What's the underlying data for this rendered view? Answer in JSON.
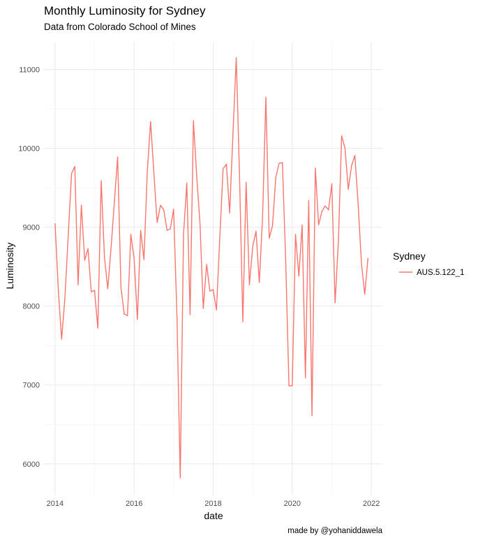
{
  "chart_data": {
    "type": "line",
    "title": "Monthly Luminosity for Sydney",
    "subtitle": "Data from Colorado School of Mines",
    "xlabel": "date",
    "ylabel": "Luminosity",
    "caption": "made by @yohaniddawela",
    "x_ticks": [
      "2014",
      "2016",
      "2018",
      "2020",
      "2022"
    ],
    "y_ticks": [
      "6000",
      "7000",
      "8000",
      "9000",
      "10000",
      "11000"
    ],
    "xlim": [
      2013.72,
      2022.28
    ],
    "ylim": [
      5600,
      11350
    ],
    "grid": true,
    "legend": {
      "title": "Sydney",
      "position": "right"
    },
    "series": [
      {
        "name": "AUS.5.122_1",
        "color": "#F8766D",
        "x": [
          "2014-01",
          "2014-02",
          "2014-03",
          "2014-04",
          "2014-05",
          "2014-06",
          "2014-07",
          "2014-08",
          "2014-09",
          "2014-10",
          "2014-11",
          "2014-12",
          "2015-01",
          "2015-02",
          "2015-03",
          "2015-04",
          "2015-05",
          "2015-06",
          "2015-07",
          "2015-08",
          "2015-09",
          "2015-10",
          "2015-11",
          "2015-12",
          "2016-01",
          "2016-02",
          "2016-03",
          "2016-04",
          "2016-05",
          "2016-06",
          "2016-07",
          "2016-08",
          "2016-09",
          "2016-10",
          "2016-11",
          "2016-12",
          "2017-01",
          "2017-02",
          "2017-03",
          "2017-04",
          "2017-05",
          "2017-06",
          "2017-07",
          "2017-08",
          "2017-09",
          "2017-10",
          "2017-11",
          "2017-12",
          "2018-01",
          "2018-02",
          "2018-03",
          "2018-04",
          "2018-05",
          "2018-06",
          "2018-07",
          "2018-08",
          "2018-09",
          "2018-10",
          "2018-11",
          "2018-12",
          "2019-01",
          "2019-02",
          "2019-03",
          "2019-04",
          "2019-05",
          "2019-06",
          "2019-07",
          "2019-08",
          "2019-09",
          "2019-10",
          "2019-11",
          "2019-12",
          "2020-01",
          "2020-02",
          "2020-03",
          "2020-04",
          "2020-05",
          "2020-06",
          "2020-07",
          "2020-08",
          "2020-09",
          "2020-10",
          "2020-11",
          "2020-12",
          "2021-01",
          "2021-02",
          "2021-03",
          "2021-04",
          "2021-05",
          "2021-06",
          "2021-07",
          "2021-08",
          "2021-09",
          "2021-10",
          "2021-11",
          "2021-12"
        ],
        "values": [
          9050,
          8200,
          7580,
          8100,
          8900,
          9680,
          9770,
          8270,
          9280,
          8580,
          8730,
          8180,
          8200,
          7720,
          9590,
          8620,
          8220,
          8730,
          9320,
          9890,
          8240,
          7900,
          7880,
          8910,
          8600,
          7830,
          8960,
          8590,
          9710,
          10340,
          9690,
          9060,
          9280,
          9220,
          8960,
          8980,
          9230,
          7870,
          5820,
          8910,
          9560,
          7890,
          10350,
          9650,
          9050,
          7970,
          8530,
          8190,
          8210,
          7950,
          8850,
          9740,
          9800,
          9180,
          10180,
          11150,
          9640,
          7800,
          9570,
          8270,
          8760,
          8950,
          8300,
          9130,
          10650,
          8860,
          9020,
          9630,
          9810,
          9820,
          8580,
          6990,
          6990,
          8910,
          8380,
          9030,
          7090,
          9340,
          6610,
          9750,
          9030,
          9200,
          9270,
          9220,
          9550,
          8040,
          8810,
          10160,
          10000,
          9480,
          9780,
          9910,
          9300,
          8540,
          8150,
          8610
        ]
      }
    ]
  }
}
